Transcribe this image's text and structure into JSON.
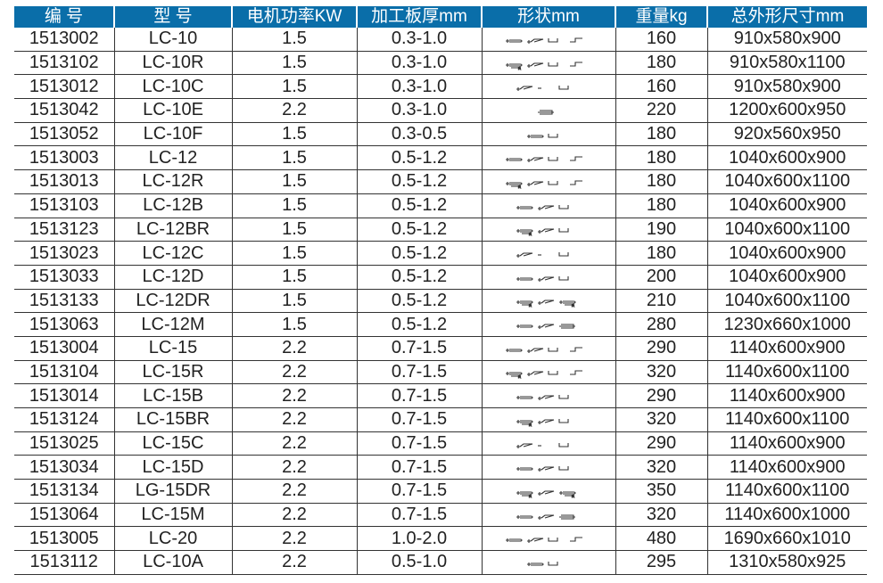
{
  "header_color": "#0a6ea9",
  "columns": [
    "编 号",
    "型 号",
    "电机功率KW",
    "加工板厚mm",
    "形状mm",
    "重量kg",
    "总外形尺寸mm"
  ],
  "rows": [
    [
      "1513002",
      "LC-10",
      "1.5",
      "0.3-1.0",
      [
        "hem",
        "curl",
        "u",
        "z"
      ],
      "160",
      "910x580x900"
    ],
    [
      "1513102",
      "LC-10R",
      "1.5",
      "0.3-1.0",
      [
        "hemR",
        "curl",
        "u",
        "z"
      ],
      "180",
      "910x580x1100"
    ],
    [
      "1513012",
      "LC-10C",
      "1.5",
      "0.3-1.0",
      [
        "curl",
        "gap",
        "u"
      ],
      "160",
      "910x580x900"
    ],
    [
      "1513042",
      "LC-10E",
      "2.2",
      "0.3-1.0",
      [
        "box"
      ],
      "220",
      "1200x600x950"
    ],
    [
      "1513052",
      "LC-10F",
      "1.5",
      "0.3-0.5",
      [
        "hem",
        "u"
      ],
      "180",
      "920x560x950"
    ],
    [
      "1513003",
      "LC-12",
      "1.5",
      "0.5-1.2",
      [
        "hem",
        "curl",
        "u",
        "z"
      ],
      "180",
      "1040x600x900"
    ],
    [
      "1513013",
      "LC-12R",
      "1.5",
      "0.5-1.2",
      [
        "hemR",
        "curl",
        "u",
        "z"
      ],
      "180",
      "1040x600x1100"
    ],
    [
      "1513103",
      "LC-12B",
      "1.5",
      "0.5-1.2",
      [
        "hem",
        "curl",
        "u"
      ],
      "180",
      "1040x600x900"
    ],
    [
      "1513123",
      "LC-12BR",
      "1.5",
      "0.5-1.2",
      [
        "hemR",
        "curl",
        "u"
      ],
      "190",
      "1040x600x1100"
    ],
    [
      "1513023",
      "LC-12C",
      "1.5",
      "0.5-1.2",
      [
        "curl",
        "gap",
        "u"
      ],
      "180",
      "1040x600x900"
    ],
    [
      "1513033",
      "LC-12D",
      "1.5",
      "0.5-1.2",
      [
        "hem",
        "curl",
        "u"
      ],
      "200",
      "1040x600x900"
    ],
    [
      "1513133",
      "LC-12DR",
      "1.5",
      "0.5-1.2",
      [
        "hemR",
        "curl",
        "hemR"
      ],
      "210",
      "1040x600x1100"
    ],
    [
      "1513063",
      "LC-12M",
      "1.5",
      "0.5-1.2",
      [
        "hem",
        "curl",
        "box"
      ],
      "280",
      "1230x660x1000"
    ],
    [
      "1513004",
      "LC-15",
      "2.2",
      "0.7-1.5",
      [
        "hem",
        "curl",
        "u",
        "z"
      ],
      "290",
      "1140x600x900"
    ],
    [
      "1513104",
      "LC-15R",
      "2.2",
      "0.7-1.5",
      [
        "hemR",
        "curl",
        "u",
        "z"
      ],
      "320",
      "1140x600x1100"
    ],
    [
      "1513014",
      "LC-15B",
      "2.2",
      "0.7-1.5",
      [
        "hem",
        "curl",
        "u"
      ],
      "290",
      "1140x600x900"
    ],
    [
      "1513124",
      "LC-15BR",
      "2.2",
      "0.7-1.5",
      [
        "hemR",
        "curl",
        "u"
      ],
      "320",
      "1140x600x1100"
    ],
    [
      "1513025",
      "LC-15C",
      "2.2",
      "0.7-1.5",
      [
        "curl",
        "gap",
        "u"
      ],
      "290",
      "1140x600x900"
    ],
    [
      "1513034",
      "LC-15D",
      "2.2",
      "0.7-1.5",
      [
        "hem",
        "curl",
        "u"
      ],
      "320",
      "1140x600x900"
    ],
    [
      "1513134",
      "LG-15DR",
      "2.2",
      "0.7-1.5",
      [
        "hemR",
        "curl",
        "hemR"
      ],
      "350",
      "1140x600x1100"
    ],
    [
      "1513064",
      "LC-15M",
      "2.2",
      "0.7-1.5",
      [
        "hem",
        "curl",
        "box"
      ],
      "320",
      "1140x600x1000"
    ],
    [
      "1513005",
      "LC-20",
      "2.2",
      "1.0-2.0",
      [
        "hem",
        "curl",
        "u",
        "z"
      ],
      "480",
      "1690x660x1010"
    ],
    [
      "1513112",
      "LC-10A",
      "2.2",
      "0.5-1.0",
      [
        "hem",
        "u"
      ],
      "295",
      "1310x580x925"
    ]
  ]
}
